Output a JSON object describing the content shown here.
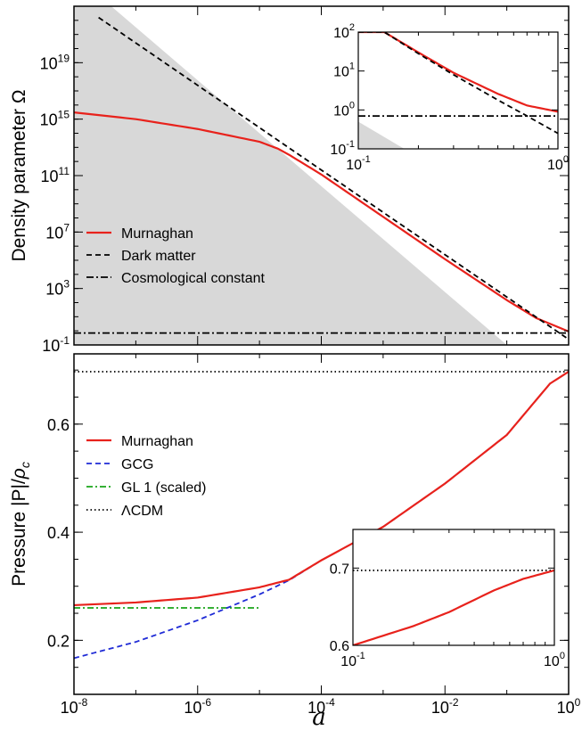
{
  "chart_data": [
    {
      "id": "top",
      "type": "line",
      "x_scale": "log",
      "y_scale": "log",
      "xlim": [
        1e-08,
        1
      ],
      "ylim": [
        0.1,
        1e+23
      ],
      "ylabel": "Density parameter  Ω",
      "y_ticks": [
        {
          "base": "10",
          "exp": "-1",
          "value": 0.1
        },
        {
          "base": "10",
          "exp": "3",
          "value": 1000.0
        },
        {
          "base": "10",
          "exp": "7",
          "value": 10000000.0
        },
        {
          "base": "10",
          "exp": "11",
          "value": 100000000000.0
        },
        {
          "base": "10",
          "exp": "15",
          "value": 1000000000000000.0
        },
        {
          "base": "10",
          "exp": "19",
          "value": 1e+19
        }
      ],
      "legend_position": "left",
      "series": [
        {
          "name": "Murnaghan",
          "color": "#e8221c",
          "dash": "solid",
          "x": [
            1e-08,
            1e-07,
            1e-06,
            1e-05,
            2e-05,
            3e-05,
            0.0001,
            0.001,
            0.01,
            0.1,
            0.3,
            1
          ],
          "y": [
            3000000000000000.0,
            1000000000000000.0,
            200000000000000.0,
            25000000000000.0,
            8000000000000.0,
            3000000000000.0,
            120000000000.0,
            120000000.0,
            120000.0,
            150,
            8,
            0.9
          ]
        },
        {
          "name": "Dark matter",
          "color": "#000000",
          "dash": "6,4",
          "x": [
            2.5e-08,
            1e-06,
            0.0001,
            0.01,
            0.1,
            1
          ],
          "y": [
            1.6e+22,
            2.5e+17,
            250000000000.0,
            250000.0,
            250,
            0.25
          ]
        },
        {
          "name": "Cosmological constant",
          "color": "#000000",
          "dash": "8,3,2,3",
          "x": [
            1e-08,
            1
          ],
          "y": [
            0.7,
            0.7
          ]
        }
      ],
      "shade": {
        "color": "#d8d8d8",
        "x": [
          1e-08,
          4e-08,
          0.1,
          1e-08
        ],
        "y": [
          1e+23,
          1e+23,
          0.1,
          0.1
        ]
      },
      "inset": {
        "xlim": [
          0.1,
          1
        ],
        "ylim": [
          0.1,
          100
        ],
        "x_ticks": [
          {
            "base": "10",
            "exp": "-1",
            "value": 0.1
          },
          {
            "base": "10",
            "exp": "0",
            "value": 1
          }
        ],
        "y_ticks": [
          {
            "base": "10",
            "exp": "-1",
            "value": 0.1
          },
          {
            "base": "10",
            "exp": "0",
            "value": 1
          },
          {
            "base": "10",
            "exp": "1",
            "value": 10
          },
          {
            "base": "10",
            "exp": "2",
            "value": 100
          }
        ],
        "series": [
          {
            "name": "Murnaghan",
            "x": [
              0.1,
              0.135,
              0.2,
              0.3,
              0.5,
              0.7,
              1
            ],
            "y": [
              100,
              100,
              30,
              9,
              2.6,
              1.3,
              0.9
            ]
          },
          {
            "name": "Dark matter",
            "x": [
              0.1,
              0.135,
              0.2,
              0.3,
              0.5,
              0.7,
              1
            ],
            "y": [
              100,
              100,
              28,
              8,
              1.8,
              0.7,
              0.25
            ]
          },
          {
            "name": "Cosmological constant",
            "x": [
              0.1,
              1
            ],
            "y": [
              0.7,
              0.7
            ]
          }
        ],
        "shade": {
          "x": [
            0.1,
            0.1,
            0.17
          ],
          "y": [
            0.1,
            0.5,
            0.1
          ]
        }
      }
    },
    {
      "id": "bottom",
      "type": "line",
      "x_scale": "log",
      "y_scale": "linear",
      "xlim": [
        1e-08,
        1
      ],
      "ylim": [
        0.1,
        0.73
      ],
      "ylabel_text": "Pressure  |P|/",
      "ylabel_rho": "ρ",
      "ylabel_sub": "c",
      "xlabel": "a",
      "x_ticks": [
        {
          "base": "10",
          "exp": "-8",
          "value": 1e-08
        },
        {
          "base": "10",
          "exp": "-6",
          "value": 1e-06
        },
        {
          "base": "10",
          "exp": "-4",
          "value": 0.0001
        },
        {
          "base": "10",
          "exp": "-2",
          "value": 0.01
        },
        {
          "base": "10",
          "exp": "0",
          "value": 1
        }
      ],
      "y_ticks": [
        {
          "label": "0.2",
          "value": 0.2
        },
        {
          "label": "0.4",
          "value": 0.4
        },
        {
          "label": "0.6",
          "value": 0.6
        }
      ],
      "legend_position": "left",
      "series": [
        {
          "name": "Murnaghan",
          "color": "#e8221c",
          "dash": "solid",
          "x": [
            1e-08,
            1e-07,
            1e-06,
            1e-05,
            3e-05,
            0.0001,
            0.001,
            0.01,
            0.1,
            0.5,
            1
          ],
          "y": [
            0.265,
            0.27,
            0.279,
            0.298,
            0.312,
            0.348,
            0.41,
            0.49,
            0.58,
            0.675,
            0.697
          ]
        },
        {
          "name": "GCG",
          "color": "#1f2bd6",
          "dash": "6,4",
          "x": [
            1e-08,
            1e-07,
            1e-06,
            1e-05,
            3e-05,
            0.0001,
            0.001,
            0.01,
            0.1,
            0.5,
            1
          ],
          "y": [
            0.167,
            0.197,
            0.237,
            0.285,
            0.311,
            0.348,
            0.41,
            0.49,
            0.58,
            0.675,
            0.697
          ]
        },
        {
          "name": "GL 1 (scaled)",
          "color": "#1aa51a",
          "dash": "7,3,2,3",
          "x": [
            1e-08,
            1e-05
          ],
          "y": [
            0.26,
            0.26
          ]
        },
        {
          "name": "ΛCDM",
          "color": "#000000",
          "dash": "1.5,3",
          "x": [
            1e-08,
            1
          ],
          "y": [
            0.697,
            0.697
          ]
        }
      ],
      "inset": {
        "xlim": [
          0.1,
          1
        ],
        "ylim": [
          0.6,
          0.75
        ],
        "x_ticks": [
          {
            "base": "10",
            "exp": "-1",
            "value": 0.1
          },
          {
            "base": "10",
            "exp": "0",
            "value": 1
          }
        ],
        "y_ticks": [
          {
            "label": "0.6",
            "value": 0.6
          },
          {
            "label": "0.7",
            "value": 0.7
          }
        ],
        "series": [
          {
            "name": "Murnaghan",
            "x": [
              0.1,
              0.2,
              0.3,
              0.5,
              0.7,
              1
            ],
            "y": [
              0.6,
              0.625,
              0.643,
              0.671,
              0.686,
              0.697
            ]
          },
          {
            "name": "ΛCDM",
            "x": [
              0.1,
              1
            ],
            "y": [
              0.697,
              0.697
            ]
          }
        ]
      }
    }
  ]
}
